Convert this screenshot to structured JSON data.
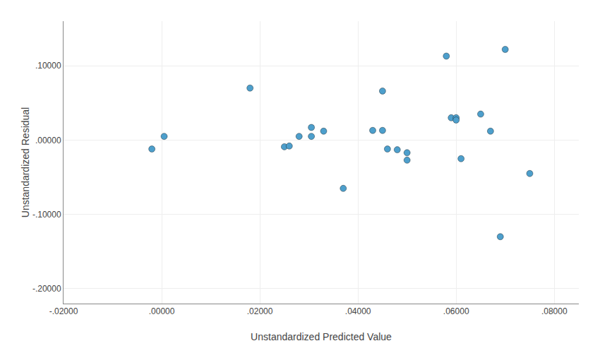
{
  "chart_data": {
    "type": "scatter",
    "x": [
      0.0005,
      -0.002,
      0.018,
      0.025,
      0.026,
      0.028,
      0.0305,
      0.0305,
      0.033,
      0.037,
      0.043,
      0.045,
      0.045,
      0.046,
      0.048,
      0.05,
      0.05,
      0.058,
      0.059,
      0.06,
      0.06,
      0.061,
      0.065,
      0.067,
      0.069,
      0.07,
      0.075
    ],
    "values": [
      0.005,
      -0.012,
      0.07,
      -0.009,
      -0.008,
      0.005,
      0.017,
      0.005,
      0.012,
      -0.065,
      0.013,
      0.066,
      0.013,
      -0.012,
      -0.013,
      -0.027,
      -0.017,
      0.113,
      0.03,
      0.03,
      0.027,
      -0.025,
      0.035,
      0.012,
      -0.13,
      0.122,
      -0.045
    ],
    "xlabel": "Unstandardized Predicted Value",
    "ylabel": "Unstandardized Residual",
    "xlim": [
      -0.02,
      0.085
    ],
    "ylim": [
      -0.22,
      0.16
    ],
    "xticks": [
      {
        "value": -0.02,
        "label": "-.02000"
      },
      {
        "value": 0.0,
        "label": ".00000"
      },
      {
        "value": 0.02,
        "label": ".02000"
      },
      {
        "value": 0.04,
        "label": ".04000"
      },
      {
        "value": 0.06,
        "label": ".06000"
      },
      {
        "value": 0.08,
        "label": ".08000"
      }
    ],
    "yticks": [
      {
        "value": -0.2,
        "label": "-.20000"
      },
      {
        "value": -0.1,
        "label": "-.10000"
      },
      {
        "value": 0.0,
        "label": ".00000"
      },
      {
        "value": 0.1,
        "label": ".10000"
      }
    ],
    "color": "#4d9fcc",
    "grid": true
  }
}
